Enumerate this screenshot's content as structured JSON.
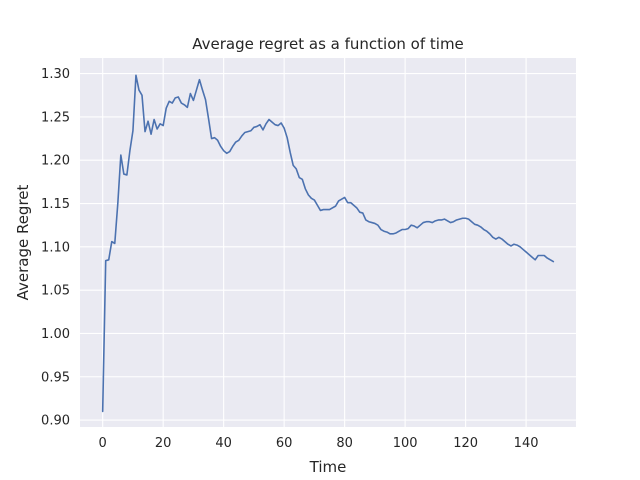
{
  "chart_data": {
    "type": "line",
    "title": "Average regret as a function of time",
    "xlabel": "Time",
    "ylabel": "Average Regret",
    "xlim": [
      -7.5,
      156.5
    ],
    "ylim": [
      0.892,
      1.318
    ],
    "xticks": [
      0,
      20,
      40,
      60,
      80,
      100,
      120,
      140
    ],
    "xtick_labels": [
      "0",
      "20",
      "40",
      "60",
      "80",
      "100",
      "120",
      "140"
    ],
    "yticks": [
      0.9,
      0.95,
      1.0,
      1.05,
      1.1,
      1.15,
      1.2,
      1.25,
      1.3
    ],
    "ytick_labels": [
      "0.90",
      "0.95",
      "1.00",
      "1.05",
      "1.10",
      "1.15",
      "1.20",
      "1.25",
      "1.30"
    ],
    "grid": true,
    "legend": false,
    "colors": {
      "background": "#eaeaf2",
      "grid": "#ffffff",
      "line": "#4c72b0",
      "text": "#262626"
    },
    "series": [
      {
        "x": [
          0,
          1,
          2,
          3,
          4,
          5,
          6,
          7,
          8,
          9,
          10,
          11,
          12,
          13,
          14,
          15,
          16,
          17,
          18,
          19,
          20,
          21,
          22,
          23,
          24,
          25,
          26,
          27,
          28,
          29,
          30,
          31,
          32,
          33,
          34,
          35,
          36,
          37,
          38,
          39,
          40,
          41,
          42,
          43,
          44,
          45,
          46,
          47,
          48,
          49,
          50,
          51,
          52,
          53,
          54,
          55,
          56,
          57,
          58,
          59,
          60,
          61,
          62,
          63,
          64,
          65,
          66,
          67,
          68,
          69,
          70,
          71,
          72,
          73,
          74,
          75,
          76,
          77,
          78,
          79,
          80,
          81,
          82,
          83,
          84,
          85,
          86,
          87,
          88,
          89,
          90,
          91,
          92,
          93,
          94,
          95,
          96,
          97,
          98,
          99,
          100,
          101,
          102,
          103,
          104,
          105,
          106,
          107,
          108,
          109,
          110,
          111,
          112,
          113,
          114,
          115,
          116,
          117,
          118,
          119,
          120,
          121,
          122,
          123,
          124,
          125,
          126,
          127,
          128,
          129,
          130,
          131,
          132,
          133,
          134,
          135,
          136,
          137,
          138,
          139,
          140,
          141,
          142,
          143,
          144,
          145,
          146,
          147,
          148,
          149
        ],
        "values": [
          0.91,
          1.084,
          1.085,
          1.106,
          1.104,
          1.15,
          1.206,
          1.184,
          1.183,
          1.211,
          1.234,
          1.298,
          1.281,
          1.275,
          1.233,
          1.245,
          1.23,
          1.247,
          1.236,
          1.242,
          1.24,
          1.26,
          1.268,
          1.266,
          1.272,
          1.273,
          1.266,
          1.264,
          1.261,
          1.277,
          1.269,
          1.281,
          1.293,
          1.281,
          1.27,
          1.248,
          1.225,
          1.226,
          1.223,
          1.216,
          1.211,
          1.208,
          1.21,
          1.216,
          1.221,
          1.223,
          1.228,
          1.232,
          1.233,
          1.234,
          1.238,
          1.239,
          1.241,
          1.235,
          1.242,
          1.247,
          1.244,
          1.241,
          1.24,
          1.243,
          1.237,
          1.226,
          1.209,
          1.194,
          1.19,
          1.18,
          1.178,
          1.167,
          1.16,
          1.156,
          1.154,
          1.148,
          1.142,
          1.143,
          1.143,
          1.143,
          1.145,
          1.147,
          1.153,
          1.155,
          1.157,
          1.151,
          1.151,
          1.148,
          1.145,
          1.14,
          1.139,
          1.131,
          1.129,
          1.128,
          1.127,
          1.125,
          1.12,
          1.118,
          1.117,
          1.115,
          1.115,
          1.116,
          1.118,
          1.12,
          1.12,
          1.121,
          1.125,
          1.124,
          1.122,
          1.125,
          1.128,
          1.129,
          1.129,
          1.128,
          1.13,
          1.131,
          1.131,
          1.132,
          1.13,
          1.128,
          1.129,
          1.131,
          1.132,
          1.133,
          1.133,
          1.132,
          1.129,
          1.126,
          1.125,
          1.123,
          1.12,
          1.118,
          1.115,
          1.111,
          1.109,
          1.111,
          1.109,
          1.106,
          1.103,
          1.101,
          1.103,
          1.102,
          1.1,
          1.097,
          1.094,
          1.091,
          1.088,
          1.085,
          1.09,
          1.09,
          1.09,
          1.087,
          1.085,
          1.083
        ]
      }
    ]
  }
}
